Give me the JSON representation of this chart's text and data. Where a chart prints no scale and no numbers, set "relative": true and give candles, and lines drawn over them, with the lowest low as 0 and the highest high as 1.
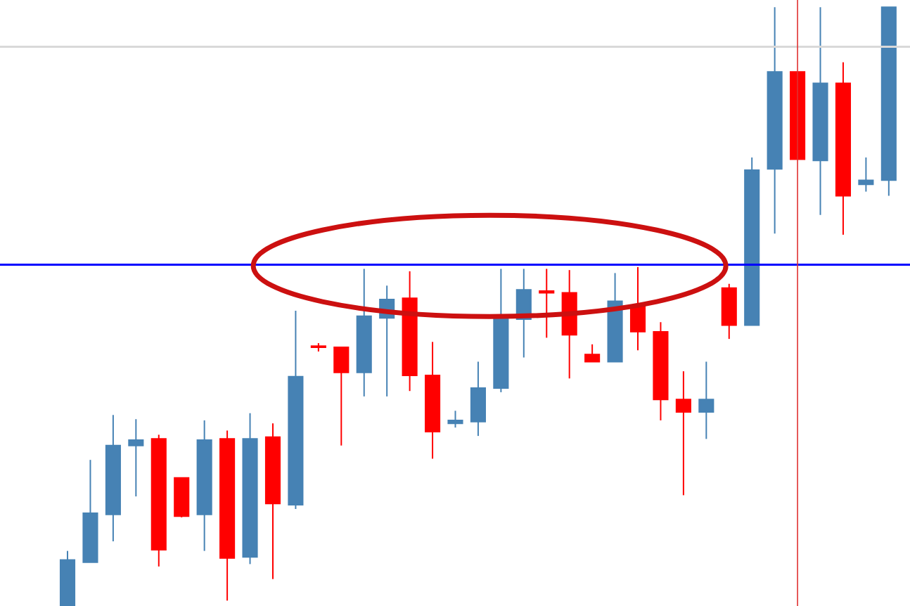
{
  "chart_data": {
    "type": "candlestick",
    "relative": true,
    "categories": [
      null,
      null,
      null,
      null,
      null,
      null,
      null,
      null,
      null,
      null,
      null,
      null,
      null,
      null,
      null,
      null,
      null,
      null,
      null,
      null,
      null,
      null,
      null,
      null,
      null,
      null,
      null,
      null,
      null,
      null,
      null,
      null,
      null,
      null,
      null,
      null,
      null
    ],
    "ohlc": [
      [
        0,
        0.092,
        0,
        0.077
      ],
      [
        0.073,
        0.244,
        0.073,
        0.155
      ],
      [
        0.153,
        0.319,
        0.108,
        0.268
      ],
      [
        0.268,
        0.312,
        0.183,
        0.277
      ],
      [
        0.279,
        0.286,
        0.066,
        0.094
      ],
      [
        0.214,
        0.214,
        0.148,
        0.15
      ],
      [
        0.153,
        0.31,
        0.092,
        0.277
      ],
      [
        0.279,
        0.293,
        0.009,
        0.08
      ],
      [
        0.082,
        0.322,
        0.07,
        0.279
      ],
      [
        0.282,
        0.305,
        0.045,
        0.171
      ],
      [
        0.169,
        0.493,
        0.162,
        0.383
      ],
      [
        0.434,
        0.439,
        0.425,
        0.432
      ],
      [
        0.432,
        0.432,
        0.268,
        0.39
      ],
      [
        0.39,
        0.563,
        0.35,
        0.484
      ],
      [
        0.481,
        0.535,
        0.35,
        0.512
      ],
      [
        0.514,
        0.559,
        0.359,
        0.385
      ],
      [
        0.385,
        0.441,
        0.246,
        0.291
      ],
      [
        0.305,
        0.326,
        0.298,
        0.31
      ],
      [
        0.308,
        0.408,
        0.284,
        0.364
      ],
      [
        0.364,
        0.563,
        0.357,
        0.481
      ],
      [
        0.479,
        0.563,
        0.415,
        0.528
      ],
      [
        0.526,
        0.563,
        0.448,
        0.523
      ],
      [
        0.523,
        0.561,
        0.38,
        0.453
      ],
      [
        0.42,
        0.437,
        0.408,
        0.408
      ],
      [
        0.408,
        0.556,
        0.408,
        0.509
      ],
      [
        0.5,
        0.566,
        0.427,
        0.458
      ],
      [
        0.458,
        0.474,
        0.31,
        0.345
      ],
      [
        0.345,
        0.392,
        0.185,
        0.324
      ],
      [
        0.324,
        0.408,
        0.279,
        0.345
      ],
      [
        0.531,
        0.538,
        0.446,
        0.469
      ],
      [
        0.469,
        0.749,
        0.469,
        0.728
      ],
      [
        0.73,
        1,
        0.622,
        0.892
      ],
      [
        0.892,
        0.892,
        0.746,
        0.746
      ],
      [
        0.744,
        1,
        0.653,
        0.873
      ],
      [
        0.873,
        0.908,
        0.62,
        0.685
      ],
      [
        0.704,
        0.749,
        0.692,
        0.711
      ],
      [
        0.711,
        1,
        0.685,
        1
      ]
    ],
    "colors": [
      "#4682b4",
      "#4682b4",
      "#4682b4",
      "#4682b4",
      "#ff0000",
      "#ff0000",
      "#4682b4",
      "#ff0000",
      "#4682b4",
      "#ff0000",
      "#4682b4",
      "#ff0000",
      "#ff0000",
      "#4682b4",
      "#4682b4",
      "#ff0000",
      "#ff0000",
      "#4682b4",
      "#4682b4",
      "#4682b4",
      "#4682b4",
      "#ff0000",
      "#ff0000",
      "#ff0000",
      "#4682b4",
      "#ff0000",
      "#ff0000",
      "#ff0000",
      "#4682b4",
      "#ff0000",
      "#4682b4",
      "#4682b4",
      "#ff0000",
      "#4682b4",
      "#ff0000",
      "#4682b4",
      "#4682b4"
    ],
    "ref_lines": [
      {
        "axis": "y",
        "value": 0.57,
        "color": "#0000ff",
        "line_style": "solid"
      },
      {
        "axis": "y",
        "value": 0.934,
        "color": "#d9d9d9",
        "line_style": "solid"
      }
    ]
  }
}
